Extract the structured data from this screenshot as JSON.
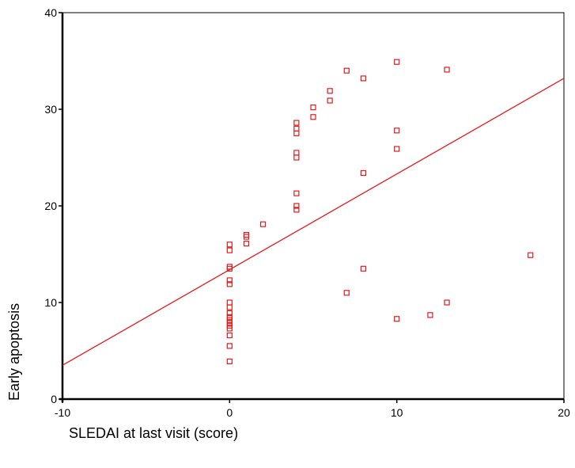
{
  "chart_data": {
    "type": "scatter",
    "title": "",
    "xlabel": "SLEDAI at last visit (score)",
    "ylabel": "Early apoptosis",
    "xlim": [
      -10,
      20
    ],
    "ylim": [
      0,
      40
    ],
    "x_ticks": [
      -10,
      0,
      10,
      20
    ],
    "y_ticks": [
      0,
      10,
      20,
      30,
      40
    ],
    "grid": false,
    "legend": "none",
    "marker": "open-square",
    "color": "#e41a1c",
    "points": [
      {
        "x": 0,
        "y": 16.0
      },
      {
        "x": 0,
        "y": 15.4
      },
      {
        "x": 0,
        "y": 13.7
      },
      {
        "x": 0,
        "y": 13.5
      },
      {
        "x": 0,
        "y": 12.3
      },
      {
        "x": 0,
        "y": 11.9
      },
      {
        "x": 0,
        "y": 10.0
      },
      {
        "x": 0,
        "y": 9.5
      },
      {
        "x": 0,
        "y": 8.9
      },
      {
        "x": 0,
        "y": 8.5
      },
      {
        "x": 0,
        "y": 8.2
      },
      {
        "x": 0,
        "y": 7.9
      },
      {
        "x": 0,
        "y": 7.6
      },
      {
        "x": 0,
        "y": 7.3
      },
      {
        "x": 0,
        "y": 6.6
      },
      {
        "x": 0,
        "y": 5.5
      },
      {
        "x": 0,
        "y": 3.9
      },
      {
        "x": 1,
        "y": 17.0
      },
      {
        "x": 1,
        "y": 16.8
      },
      {
        "x": 1,
        "y": 16.1
      },
      {
        "x": 2,
        "y": 18.1
      },
      {
        "x": 4,
        "y": 28.6
      },
      {
        "x": 4,
        "y": 28.0
      },
      {
        "x": 4,
        "y": 27.5
      },
      {
        "x": 4,
        "y": 25.5
      },
      {
        "x": 4,
        "y": 25.0
      },
      {
        "x": 4,
        "y": 21.3
      },
      {
        "x": 4,
        "y": 20.0
      },
      {
        "x": 4,
        "y": 19.6
      },
      {
        "x": 5,
        "y": 30.2
      },
      {
        "x": 5,
        "y": 29.2
      },
      {
        "x": 6,
        "y": 31.9
      },
      {
        "x": 6,
        "y": 30.9
      },
      {
        "x": 7,
        "y": 34.0
      },
      {
        "x": 7,
        "y": 11.0
      },
      {
        "x": 8,
        "y": 33.2
      },
      {
        "x": 8,
        "y": 23.4
      },
      {
        "x": 8,
        "y": 13.5
      },
      {
        "x": 10,
        "y": 34.9
      },
      {
        "x": 10,
        "y": 27.8
      },
      {
        "x": 10,
        "y": 25.9
      },
      {
        "x": 10,
        "y": 8.3
      },
      {
        "x": 12,
        "y": 8.7
      },
      {
        "x": 13,
        "y": 34.1
      },
      {
        "x": 13,
        "y": 10.0
      },
      {
        "x": 18,
        "y": 14.9
      }
    ],
    "fit_line": {
      "x": [
        -10,
        20
      ],
      "y": [
        3.5,
        33.2
      ]
    }
  }
}
